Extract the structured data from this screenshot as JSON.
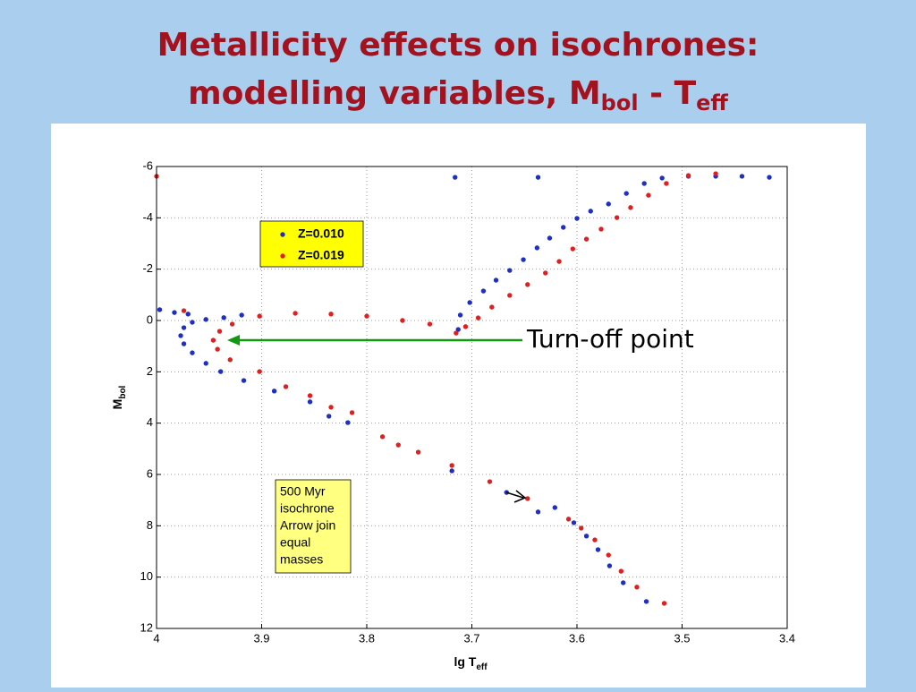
{
  "chart_data": {
    "type": "scatter",
    "title": {
      "line1": "Metallicity effects on isochrones:",
      "line2": [
        "modelling variables, M",
        "bol",
        " - T",
        "eff"
      ]
    },
    "xlabel": [
      "lg T",
      "eff"
    ],
    "ylabel": [
      "M",
      "bol"
    ],
    "xlim": [
      4,
      3.4
    ],
    "ylim": [
      -6,
      12
    ],
    "xticks": [
      4,
      3.9,
      3.8,
      3.7,
      3.6,
      3.5,
      3.4
    ],
    "yticks": [
      -6,
      -4,
      -2,
      0,
      2,
      4,
      6,
      8,
      10,
      12
    ],
    "grid": true,
    "legend": "upper left",
    "series": [
      {
        "name": "Z=0.010",
        "color": "#1f2fbf",
        "x": [
          3.534,
          3.556,
          3.569,
          3.58,
          3.591,
          3.603,
          3.621,
          3.637,
          3.667,
          3.719,
          3.818,
          3.836,
          3.854,
          3.888,
          3.917,
          3.939,
          3.953,
          3.966,
          3.974,
          3.977,
          3.974,
          3.966,
          3.953,
          3.936,
          3.919,
          3.97,
          3.997,
          3.983,
          3.713,
          3.711,
          3.702,
          3.689,
          3.677,
          3.664,
          3.651,
          3.638,
          3.626,
          3.613,
          3.6,
          3.587,
          3.57,
          3.553,
          3.536,
          3.519,
          3.494,
          3.468,
          3.443,
          3.417,
          3.716,
          3.637
        ],
        "values": [
          10.95,
          10.22,
          9.56,
          8.93,
          8.4,
          7.88,
          7.29,
          7.46,
          6.7,
          5.86,
          3.98,
          3.73,
          3.17,
          2.75,
          2.34,
          1.99,
          1.67,
          1.26,
          0.91,
          0.59,
          0.28,
          0.07,
          -0.04,
          -0.11,
          -0.21,
          -0.25,
          -0.42,
          -0.31,
          0.35,
          -0.21,
          -0.7,
          -1.15,
          -1.57,
          -1.95,
          -2.37,
          -2.83,
          -3.21,
          -3.63,
          -3.98,
          -4.26,
          -4.54,
          -4.95,
          -5.34,
          -5.55,
          -5.62,
          -5.62,
          -5.62,
          -5.58,
          -5.58,
          -5.58
        ]
      },
      {
        "name": "Z=0.019",
        "color": "#e02020",
        "x": [
          3.517,
          3.543,
          3.558,
          3.57,
          3.583,
          3.596,
          3.608,
          3.647,
          3.683,
          3.719,
          3.751,
          3.77,
          3.785,
          3.814,
          3.834,
          3.854,
          3.877,
          3.902,
          3.93,
          3.942,
          3.946,
          3.94,
          3.928,
          3.902,
          3.868,
          3.834,
          3.8,
          3.766,
          3.74,
          3.715,
          3.706,
          3.694,
          3.681,
          3.664,
          3.647,
          3.63,
          3.617,
          3.604,
          3.591,
          3.577,
          3.562,
          3.549,
          3.532,
          3.515,
          3.494,
          3.468,
          4.0,
          3.974
        ],
        "values": [
          11.02,
          10.39,
          9.77,
          9.14,
          8.55,
          8.09,
          7.74,
          6.94,
          6.28,
          5.65,
          5.13,
          4.85,
          4.53,
          3.59,
          3.38,
          2.93,
          2.58,
          1.99,
          1.53,
          1.12,
          0.77,
          0.42,
          0.14,
          -0.17,
          -0.28,
          -0.25,
          -0.17,
          0.0,
          0.14,
          0.49,
          0.24,
          -0.1,
          -0.52,
          -0.98,
          -1.4,
          -1.85,
          -2.3,
          -2.79,
          -3.17,
          -3.56,
          -4.01,
          -4.4,
          -4.88,
          -5.34,
          -5.65,
          -5.72,
          -5.62,
          -0.38
        ]
      }
    ],
    "annotations": {
      "note": [
        "500 Myr",
        "isochrone",
        "Arrow join",
        "equal",
        "masses"
      ],
      "turnoff": "Turn-off point"
    }
  }
}
